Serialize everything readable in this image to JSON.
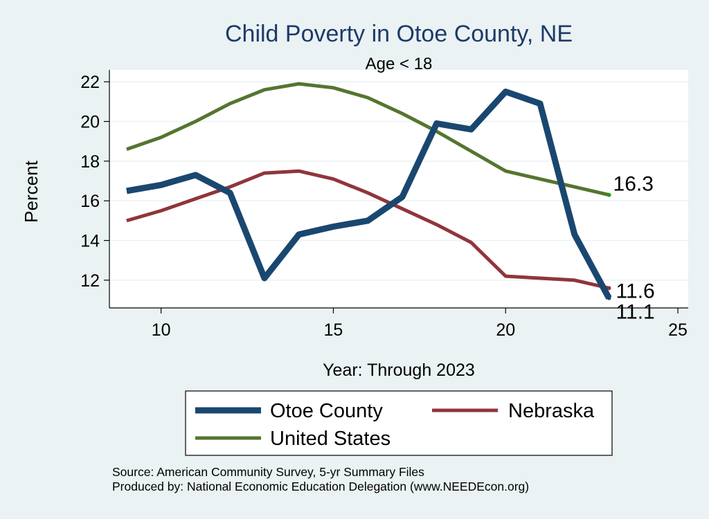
{
  "chart_data": {
    "type": "line",
    "title": "Child Poverty in Otoe County, NE",
    "subtitle": "Age < 18",
    "xlabel": "Year: Through 2023",
    "ylabel": "Percent",
    "xlim": [
      8.5,
      25.3
    ],
    "ylim": [
      10.6,
      22.6
    ],
    "x_ticks": [
      10,
      15,
      20,
      25
    ],
    "y_ticks": [
      12,
      14,
      16,
      18,
      20,
      22
    ],
    "grid": true,
    "legend_position": "bottom",
    "background": "#eaf2f3",
    "plot_background": "#ffffff",
    "series": [
      {
        "name": "Otoe County",
        "color": "#1a476f",
        "x": [
          9,
          10,
          11,
          12,
          13,
          14,
          15,
          16,
          17,
          18,
          19,
          20,
          21,
          22,
          23
        ],
        "values": [
          16.5,
          16.8,
          17.3,
          16.4,
          12.1,
          14.3,
          14.7,
          15.0,
          16.2,
          19.9,
          19.6,
          21.5,
          20.9,
          14.3,
          11.1
        ],
        "end_label": "11.1"
      },
      {
        "name": "Nebraska",
        "color": "#90353b",
        "x": [
          9,
          10,
          11,
          12,
          13,
          14,
          15,
          16,
          17,
          18,
          19,
          20,
          21,
          22,
          23
        ],
        "values": [
          15.0,
          15.5,
          16.1,
          16.7,
          17.4,
          17.5,
          17.1,
          16.4,
          15.6,
          14.8,
          13.9,
          12.2,
          12.1,
          12.0,
          11.6
        ],
        "end_label": "11.6"
      },
      {
        "name": "United States",
        "color": "#55752f",
        "x": [
          9,
          10,
          11,
          12,
          13,
          14,
          15,
          16,
          17,
          18,
          19,
          20,
          21,
          22,
          23
        ],
        "values": [
          18.6,
          19.2,
          20.0,
          20.9,
          21.6,
          21.9,
          21.7,
          21.2,
          20.4,
          19.5,
          18.5,
          17.5,
          17.1,
          16.7,
          16.3
        ],
        "end_label": "16.3"
      }
    ],
    "notes": [
      "Source: American Community Survey, 5-yr Summary Files",
      "Produced by: National Economic Education Delegation (www.NEEDEcon.org)"
    ]
  }
}
